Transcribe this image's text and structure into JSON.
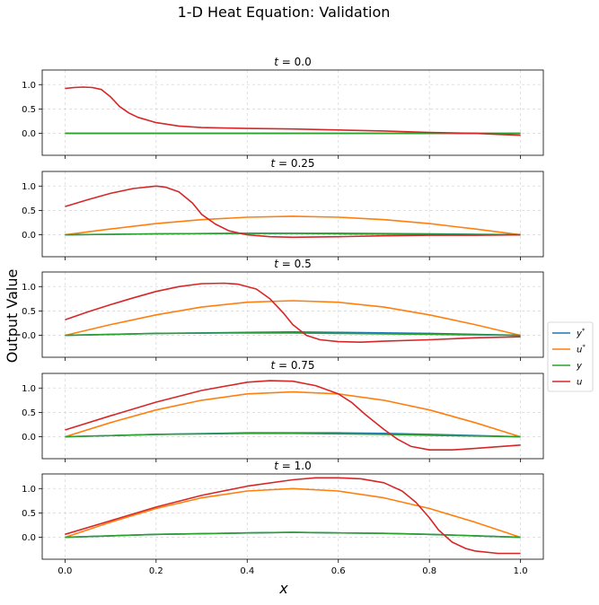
{
  "figure": {
    "title": "1-D Heat Equation: Validation",
    "ylabel": "Output Value",
    "xlabel": "x"
  },
  "legend": {
    "placement": "center-right",
    "entries": [
      {
        "label": "y*",
        "color": "#1f77b4"
      },
      {
        "label": "u*",
        "color": "#ff7f0e"
      },
      {
        "label": "y",
        "color": "#2ca02c"
      },
      {
        "label": "u",
        "color": "#d62728"
      }
    ]
  },
  "chart_data": {
    "type": "line",
    "grid": true,
    "xlim": [
      -0.05,
      1.05
    ],
    "ylim": [
      -0.45,
      1.3
    ],
    "xticks": [
      0.0,
      0.2,
      0.4,
      0.6,
      0.8,
      1.0
    ],
    "xtick_labels": [
      "0.0",
      "0.2",
      "0.4",
      "0.6",
      "0.8",
      "1.0"
    ],
    "yticks": [
      0.0,
      0.5,
      1.0
    ],
    "ytick_labels": [
      "0.0",
      "0.5",
      "1.0"
    ],
    "panels": [
      {
        "title": "t = 0.0",
        "series": {
          "y*": {
            "x": [
              0,
              1
            ],
            "y": [
              0.0,
              0.0
            ]
          },
          "u*": {
            "x": [
              0,
              1
            ],
            "y": [
              0.0,
              0.0
            ]
          },
          "y": {
            "x": [
              0,
              1
            ],
            "y": [
              0.0,
              0.0
            ]
          },
          "u": {
            "x": [
              0.0,
              0.02,
              0.04,
              0.06,
              0.08,
              0.1,
              0.12,
              0.14,
              0.16,
              0.2,
              0.25,
              0.3,
              0.4,
              0.5,
              0.6,
              0.7,
              0.8,
              0.9,
              0.95,
              1.0
            ],
            "y": [
              0.92,
              0.94,
              0.95,
              0.94,
              0.9,
              0.75,
              0.55,
              0.42,
              0.33,
              0.22,
              0.15,
              0.12,
              0.1,
              0.09,
              0.07,
              0.05,
              0.02,
              0.0,
              -0.02,
              -0.04
            ]
          }
        }
      },
      {
        "title": "t = 0.25",
        "series": {
          "y*": {
            "x": [
              0.0,
              0.2,
              0.4,
              0.5,
              0.6,
              0.8,
              1.0
            ],
            "y": [
              0.0,
              0.02,
              0.03,
              0.03,
              0.03,
              0.02,
              0.0
            ]
          },
          "u*": {
            "x": [
              0.0,
              0.1,
              0.2,
              0.3,
              0.4,
              0.5,
              0.6,
              0.7,
              0.8,
              0.9,
              1.0
            ],
            "y": [
              0.0,
              0.12,
              0.23,
              0.31,
              0.36,
              0.38,
              0.36,
              0.31,
              0.23,
              0.12,
              0.0
            ]
          },
          "y": {
            "x": [
              0.0,
              0.2,
              0.4,
              0.5,
              0.6,
              0.8,
              1.0
            ],
            "y": [
              0.0,
              0.02,
              0.03,
              0.03,
              0.02,
              0.01,
              0.0
            ]
          },
          "u": {
            "x": [
              0.0,
              0.05,
              0.1,
              0.15,
              0.2,
              0.22,
              0.25,
              0.28,
              0.3,
              0.33,
              0.36,
              0.4,
              0.45,
              0.5,
              0.6,
              0.7,
              0.8,
              0.9,
              1.0
            ],
            "y": [
              0.58,
              0.72,
              0.85,
              0.95,
              1.0,
              0.98,
              0.88,
              0.65,
              0.42,
              0.22,
              0.08,
              0.0,
              -0.04,
              -0.05,
              -0.04,
              -0.02,
              -0.01,
              -0.01,
              0.0
            ]
          }
        }
      },
      {
        "title": "t = 0.5",
        "series": {
          "y*": {
            "x": [
              0.0,
              0.2,
              0.4,
              0.5,
              0.6,
              0.8,
              1.0
            ],
            "y": [
              0.0,
              0.04,
              0.06,
              0.07,
              0.06,
              0.04,
              0.0
            ]
          },
          "u*": {
            "x": [
              0.0,
              0.1,
              0.2,
              0.3,
              0.4,
              0.5,
              0.6,
              0.7,
              0.8,
              0.9,
              1.0
            ],
            "y": [
              0.0,
              0.22,
              0.42,
              0.58,
              0.68,
              0.71,
              0.68,
              0.58,
              0.42,
              0.22,
              0.0
            ]
          },
          "y": {
            "x": [
              0.0,
              0.2,
              0.4,
              0.5,
              0.6,
              0.8,
              1.0
            ],
            "y": [
              0.0,
              0.04,
              0.05,
              0.05,
              0.04,
              0.02,
              0.0
            ]
          },
          "u": {
            "x": [
              0.0,
              0.05,
              0.1,
              0.15,
              0.2,
              0.25,
              0.3,
              0.35,
              0.38,
              0.42,
              0.45,
              0.48,
              0.5,
              0.53,
              0.56,
              0.6,
              0.65,
              0.7,
              0.8,
              0.9,
              1.0
            ],
            "y": [
              0.32,
              0.48,
              0.63,
              0.77,
              0.9,
              1.0,
              1.06,
              1.07,
              1.05,
              0.95,
              0.75,
              0.45,
              0.22,
              0.0,
              -0.09,
              -0.13,
              -0.14,
              -0.12,
              -0.09,
              -0.05,
              -0.03
            ]
          }
        }
      },
      {
        "title": "t = 0.75",
        "series": {
          "y*": {
            "x": [
              0.0,
              0.2,
              0.4,
              0.5,
              0.6,
              0.7,
              0.8,
              1.0
            ],
            "y": [
              0.0,
              0.05,
              0.08,
              0.08,
              0.08,
              0.07,
              0.05,
              0.0
            ]
          },
          "u*": {
            "x": [
              0.0,
              0.1,
              0.2,
              0.3,
              0.4,
              0.5,
              0.6,
              0.7,
              0.8,
              0.9,
              1.0
            ],
            "y": [
              0.0,
              0.29,
              0.55,
              0.75,
              0.88,
              0.92,
              0.88,
              0.75,
              0.55,
              0.29,
              0.0
            ]
          },
          "y": {
            "x": [
              0.0,
              0.2,
              0.4,
              0.5,
              0.6,
              0.7,
              0.8,
              1.0
            ],
            "y": [
              0.0,
              0.05,
              0.07,
              0.07,
              0.06,
              0.05,
              0.03,
              0.0
            ]
          },
          "u": {
            "x": [
              0.0,
              0.1,
              0.2,
              0.3,
              0.4,
              0.45,
              0.5,
              0.55,
              0.6,
              0.63,
              0.66,
              0.7,
              0.73,
              0.76,
              0.8,
              0.85,
              0.9,
              1.0
            ],
            "y": [
              0.14,
              0.43,
              0.71,
              0.95,
              1.12,
              1.15,
              1.14,
              1.05,
              0.88,
              0.7,
              0.45,
              0.15,
              -0.05,
              -0.2,
              -0.27,
              -0.27,
              -0.24,
              -0.17
            ]
          }
        }
      },
      {
        "title": "t = 1.0",
        "series": {
          "y*": {
            "x": [
              0.0,
              0.2,
              0.4,
              0.5,
              0.6,
              0.7,
              0.8,
              0.9,
              1.0
            ],
            "y": [
              0.0,
              0.06,
              0.09,
              0.1,
              0.09,
              0.08,
              0.06,
              0.03,
              0.0
            ]
          },
          "u*": {
            "x": [
              0.0,
              0.1,
              0.2,
              0.3,
              0.4,
              0.5,
              0.6,
              0.7,
              0.8,
              0.9,
              1.0
            ],
            "y": [
              0.0,
              0.31,
              0.59,
              0.81,
              0.95,
              1.0,
              0.95,
              0.81,
              0.59,
              0.31,
              0.0
            ]
          },
          "y": {
            "x": [
              0.0,
              0.2,
              0.4,
              0.5,
              0.6,
              0.7,
              0.8,
              0.9,
              1.0
            ],
            "y": [
              0.0,
              0.06,
              0.09,
              0.1,
              0.09,
              0.08,
              0.06,
              0.03,
              0.0
            ]
          },
          "u": {
            "x": [
              0.0,
              0.1,
              0.2,
              0.3,
              0.4,
              0.5,
              0.55,
              0.6,
              0.65,
              0.7,
              0.74,
              0.77,
              0.8,
              0.82,
              0.85,
              0.88,
              0.9,
              0.95,
              1.0
            ],
            "y": [
              0.06,
              0.34,
              0.62,
              0.86,
              1.05,
              1.18,
              1.22,
              1.22,
              1.2,
              1.12,
              0.95,
              0.72,
              0.4,
              0.15,
              -0.1,
              -0.23,
              -0.28,
              -0.33,
              -0.33
            ]
          }
        }
      }
    ]
  }
}
